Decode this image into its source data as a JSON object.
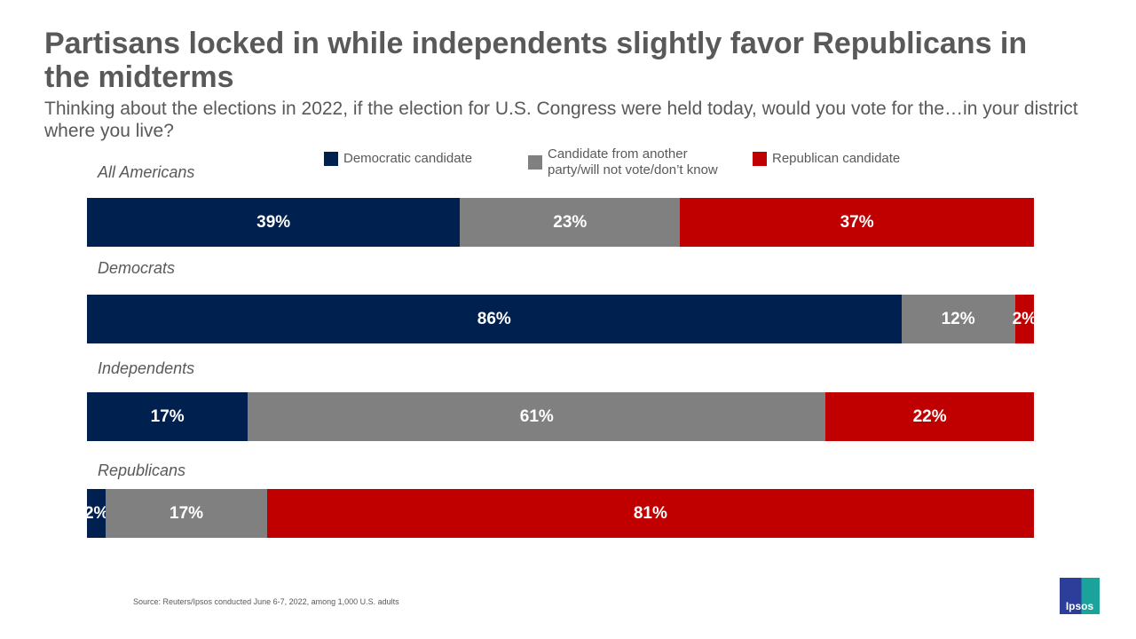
{
  "chart_data": {
    "type": "bar",
    "orientation": "horizontal-stacked",
    "title": "Partisans locked in while independents slightly favor Republicans in the midterms",
    "subtitle": "Thinking about the elections in 2022, if the election for U.S. Congress were held today, would you vote for the…in your district where you live?",
    "categories": [
      "All Americans",
      "Democrats",
      "Independents",
      "Republicans"
    ],
    "series": [
      {
        "name": "Democratic candidate",
        "color": "#002050",
        "values": [
          39,
          86,
          17,
          2
        ],
        "labels": [
          "39%",
          "86%",
          "17%",
          "2%"
        ]
      },
      {
        "name": "Candidate from another party/will not vote/don’t know",
        "color": "#808080",
        "values": [
          23,
          12,
          61,
          17
        ],
        "labels": [
          "23%",
          "12%",
          "61%",
          "17%"
        ]
      },
      {
        "name": "Republican candidate",
        "color": "#C00000",
        "values": [
          37,
          2,
          22,
          81
        ],
        "labels": [
          "37%",
          "2%",
          "22%",
          "81%"
        ]
      }
    ],
    "legend": "top",
    "grid": false
  },
  "source": "Source: Reuters/Ipsos conducted June 6-7, 2022, among 1,000 U.S. adults",
  "logo": "Ipsos"
}
